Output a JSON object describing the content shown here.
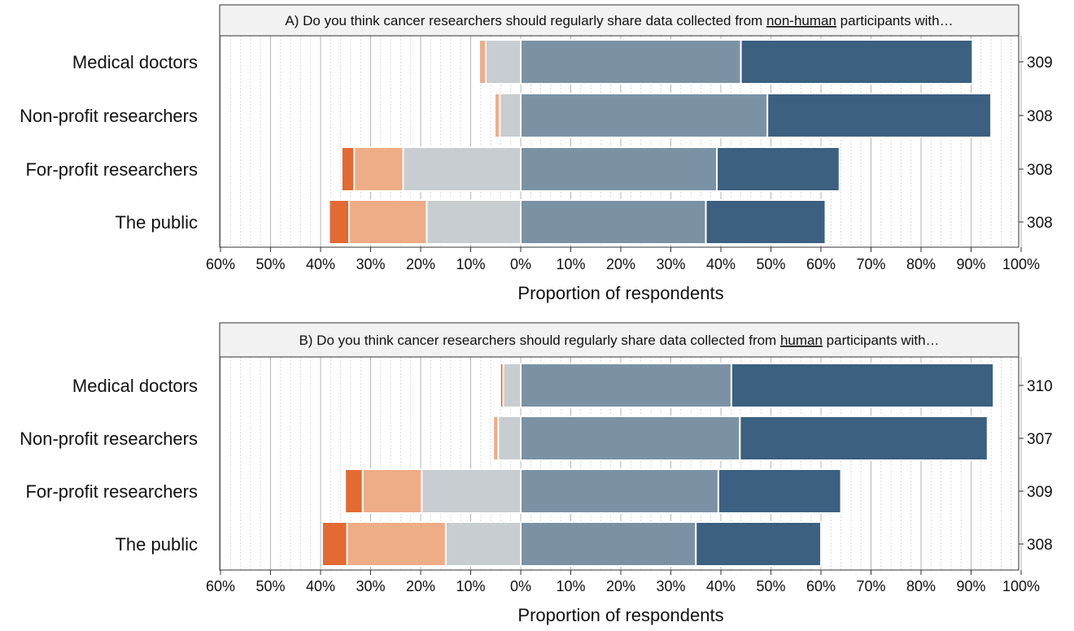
{
  "chart_data": [
    {
      "type": "bar",
      "orientation": "horizontal",
      "stacking": "diverging",
      "title_prefix": "A) Do you think cancer researchers should regularly share data collected from ",
      "title_emphasis": "non-human",
      "title_suffix": " participants with…",
      "categories": [
        "Medical doctors",
        "Non-profit researchers",
        "For-profit researchers",
        "The public"
      ],
      "counts": [
        "309",
        "308",
        "308",
        "308"
      ],
      "series": [
        {
          "side": "negative",
          "color": "#e36a33",
          "values": [
            0,
            0,
            2.5,
            4.0
          ]
        },
        {
          "side": "negative",
          "color": "#eeac87",
          "values": [
            1.3,
            1.0,
            9.8,
            15.5
          ]
        },
        {
          "side": "negative",
          "color": "#c8cdd1",
          "values": [
            7.0,
            4.2,
            23.5,
            18.8
          ]
        },
        {
          "side": "positive",
          "color": "#7b92a5",
          "values": [
            44.0,
            49.3,
            39.2,
            37.0
          ]
        },
        {
          "side": "positive",
          "color": "#3b6080",
          "values": [
            46.3,
            44.7,
            24.5,
            23.9
          ]
        }
      ],
      "xlabel": "Proportion of respondents",
      "xlim": [
        -60,
        100
      ],
      "xticks": [
        "60%",
        "50%",
        "40%",
        "30%",
        "20%",
        "10%",
        "0%",
        "10%",
        "20%",
        "30%",
        "40%",
        "50%",
        "60%",
        "70%",
        "80%",
        "90%",
        "100%"
      ],
      "grid": true
    },
    {
      "type": "bar",
      "orientation": "horizontal",
      "stacking": "diverging",
      "title_prefix": "B) Do you think cancer researchers should regularly share data collected from ",
      "title_emphasis": "human",
      "title_suffix": " participants with…",
      "categories": [
        "Medical doctors",
        "Non-profit researchers",
        "For-profit researchers",
        "The public"
      ],
      "counts": [
        "310",
        "307",
        "309",
        "308"
      ],
      "series": [
        {
          "side": "negative",
          "color": "#e36a33",
          "values": [
            0.6,
            0,
            3.5,
            5.0
          ]
        },
        {
          "side": "negative",
          "color": "#eeac87",
          "values": [
            0,
            1.0,
            11.8,
            19.7
          ]
        },
        {
          "side": "negative",
          "color": "#c8cdd1",
          "values": [
            3.5,
            4.5,
            19.8,
            15.0
          ]
        },
        {
          "side": "positive",
          "color": "#7b92a5",
          "values": [
            42.1,
            43.8,
            39.5,
            35.0
          ]
        },
        {
          "side": "positive",
          "color": "#3b6080",
          "values": [
            52.4,
            49.5,
            24.5,
            25.0
          ]
        }
      ],
      "xlabel": "Proportion of respondents",
      "xlim": [
        -60,
        100
      ],
      "xticks": [
        "60%",
        "50%",
        "40%",
        "30%",
        "20%",
        "10%",
        "0%",
        "10%",
        "20%",
        "30%",
        "40%",
        "50%",
        "60%",
        "70%",
        "80%",
        "90%",
        "100%"
      ],
      "grid": true
    }
  ]
}
